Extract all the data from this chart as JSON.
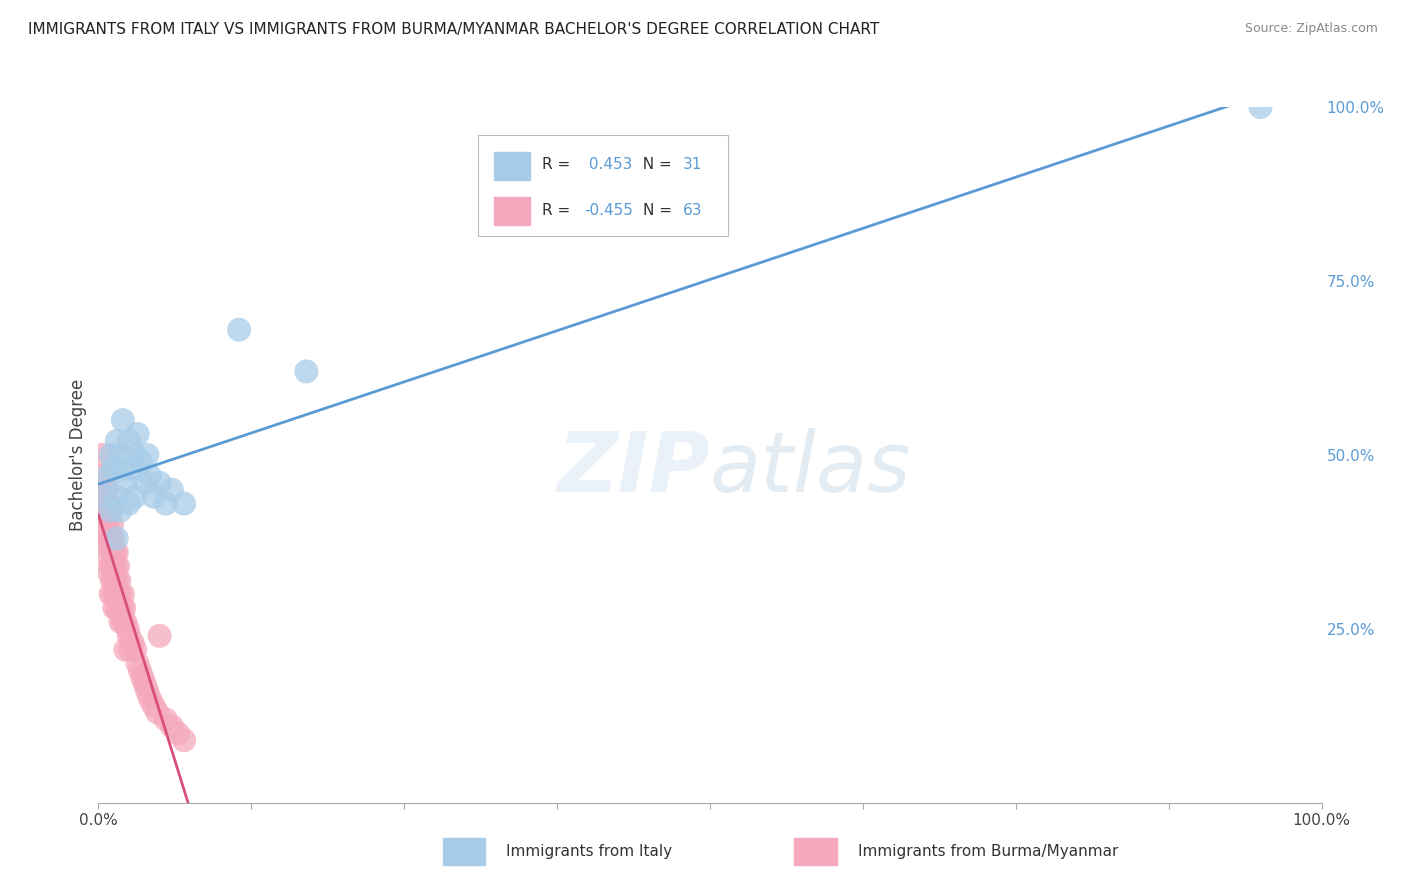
{
  "title": "IMMIGRANTS FROM ITALY VS IMMIGRANTS FROM BURMA/MYANMAR BACHELOR'S DEGREE CORRELATION CHART",
  "source": "Source: ZipAtlas.com",
  "ylabel": "Bachelor's Degree",
  "italy_R": 0.453,
  "italy_N": 31,
  "burma_R": -0.455,
  "burma_N": 63,
  "italy_color": "#a8cce8",
  "burma_color": "#f5a8bc",
  "italy_line_color": "#5b9bd5",
  "burma_line_color": "#d94f7a",
  "legend_italy": "Immigrants from Italy",
  "legend_burma": "Immigrants from Burma/Myanmar",
  "italy_points": [
    [
      0.005,
      0.44
    ],
    [
      0.008,
      0.47
    ],
    [
      0.01,
      0.5
    ],
    [
      0.01,
      0.42
    ],
    [
      0.012,
      0.48
    ],
    [
      0.015,
      0.52
    ],
    [
      0.015,
      0.44
    ],
    [
      0.015,
      0.38
    ],
    [
      0.018,
      0.5
    ],
    [
      0.018,
      0.42
    ],
    [
      0.02,
      0.55
    ],
    [
      0.02,
      0.48
    ],
    [
      0.022,
      0.46
    ],
    [
      0.025,
      0.52
    ],
    [
      0.025,
      0.43
    ],
    [
      0.028,
      0.48
    ],
    [
      0.03,
      0.5
    ],
    [
      0.03,
      0.44
    ],
    [
      0.032,
      0.53
    ],
    [
      0.035,
      0.49
    ],
    [
      0.038,
      0.46
    ],
    [
      0.04,
      0.5
    ],
    [
      0.042,
      0.47
    ],
    [
      0.045,
      0.44
    ],
    [
      0.05,
      0.46
    ],
    [
      0.055,
      0.43
    ],
    [
      0.06,
      0.45
    ],
    [
      0.07,
      0.43
    ],
    [
      0.115,
      0.68
    ],
    [
      0.17,
      0.62
    ],
    [
      0.95,
      1.0
    ]
  ],
  "burma_points": [
    [
      0.003,
      0.5
    ],
    [
      0.004,
      0.47
    ],
    [
      0.005,
      0.44
    ],
    [
      0.005,
      0.4
    ],
    [
      0.006,
      0.42
    ],
    [
      0.006,
      0.38
    ],
    [
      0.007,
      0.45
    ],
    [
      0.007,
      0.41
    ],
    [
      0.007,
      0.37
    ],
    [
      0.008,
      0.43
    ],
    [
      0.008,
      0.39
    ],
    [
      0.008,
      0.35
    ],
    [
      0.009,
      0.41
    ],
    [
      0.009,
      0.37
    ],
    [
      0.009,
      0.33
    ],
    [
      0.01,
      0.42
    ],
    [
      0.01,
      0.38
    ],
    [
      0.01,
      0.34
    ],
    [
      0.01,
      0.3
    ],
    [
      0.011,
      0.4
    ],
    [
      0.011,
      0.36
    ],
    [
      0.011,
      0.32
    ],
    [
      0.012,
      0.38
    ],
    [
      0.012,
      0.34
    ],
    [
      0.012,
      0.3
    ],
    [
      0.013,
      0.36
    ],
    [
      0.013,
      0.32
    ],
    [
      0.013,
      0.28
    ],
    [
      0.014,
      0.34
    ],
    [
      0.014,
      0.3
    ],
    [
      0.015,
      0.36
    ],
    [
      0.015,
      0.32
    ],
    [
      0.015,
      0.28
    ],
    [
      0.016,
      0.34
    ],
    [
      0.016,
      0.3
    ],
    [
      0.017,
      0.32
    ],
    [
      0.017,
      0.28
    ],
    [
      0.018,
      0.3
    ],
    [
      0.018,
      0.26
    ],
    [
      0.019,
      0.28
    ],
    [
      0.02,
      0.3
    ],
    [
      0.02,
      0.26
    ],
    [
      0.021,
      0.28
    ],
    [
      0.022,
      0.26
    ],
    [
      0.022,
      0.22
    ],
    [
      0.024,
      0.25
    ],
    [
      0.025,
      0.24
    ],
    [
      0.026,
      0.22
    ],
    [
      0.028,
      0.23
    ],
    [
      0.03,
      0.22
    ],
    [
      0.032,
      0.2
    ],
    [
      0.034,
      0.19
    ],
    [
      0.036,
      0.18
    ],
    [
      0.038,
      0.17
    ],
    [
      0.04,
      0.16
    ],
    [
      0.042,
      0.15
    ],
    [
      0.045,
      0.14
    ],
    [
      0.048,
      0.13
    ],
    [
      0.05,
      0.24
    ],
    [
      0.055,
      0.12
    ],
    [
      0.06,
      0.11
    ],
    [
      0.065,
      0.1
    ],
    [
      0.07,
      0.09
    ]
  ]
}
